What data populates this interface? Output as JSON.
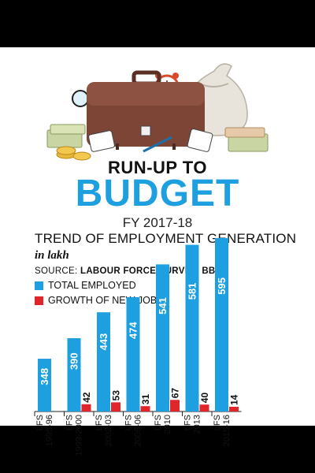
{
  "header": {
    "kicker": "RUN-UP TO",
    "title": "BUDGET",
    "fiscal_year": "FY 2017-18"
  },
  "chart_data": {
    "type": "bar",
    "title": "TREND OF EMPLOYMENT GENERATION",
    "unit": "in lakh",
    "source_label": "SOURCE:",
    "source": "LABOUR FORCE SURVEY, BBS",
    "categories": [
      [
        "LFS",
        "1995-96"
      ],
      [
        "LFS",
        "1999-2000"
      ],
      [
        "LFS",
        "2002-03"
      ],
      [
        "LFS",
        "2005-06"
      ],
      [
        "LFS",
        "2010"
      ],
      [
        "LFS",
        "2013"
      ],
      [
        "LFS",
        "2015-16"
      ]
    ],
    "series": [
      {
        "name": "TOTAL EMPLOYED",
        "color": "#1e9fe0",
        "values": [
          348,
          390,
          443,
          474,
          541,
          581,
          595
        ]
      },
      {
        "name": "GROWTH OF NEW JOBS",
        "color": "#e0262b",
        "values": [
          null,
          42,
          53,
          31,
          67,
          40,
          14
        ]
      }
    ],
    "legend_position": "top-left",
    "grid": false
  }
}
